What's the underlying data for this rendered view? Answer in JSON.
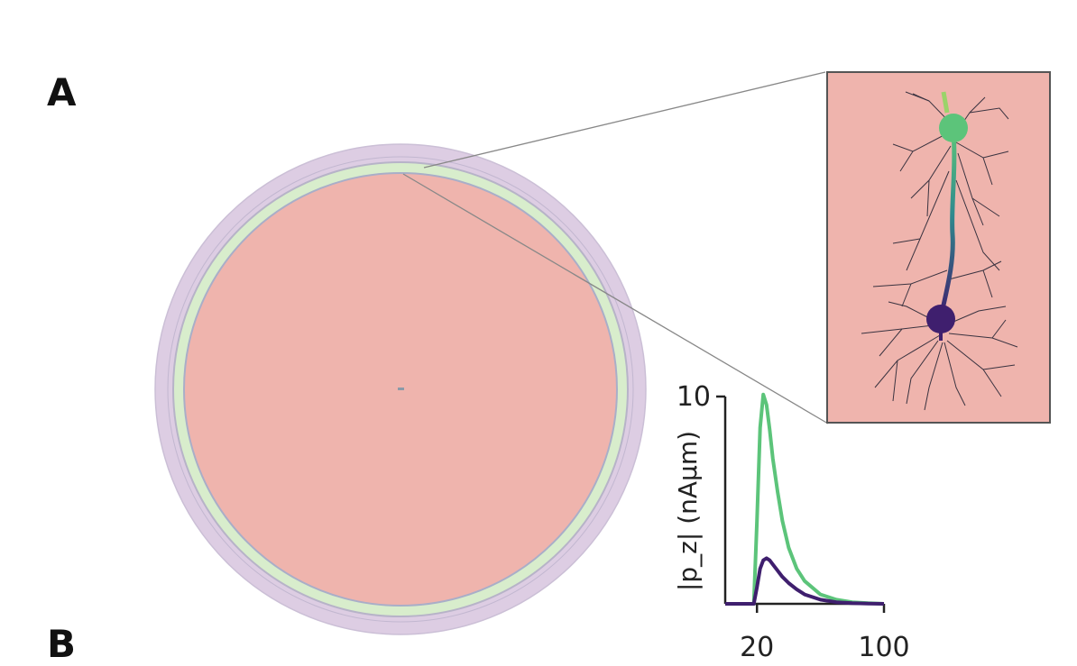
{
  "panels": {
    "a": "A",
    "b": "B"
  },
  "colors": {
    "brain": "#efb4ad",
    "csf": "#d8edcc",
    "skull": "#ddcde3",
    "scalp": "#ddcde3",
    "outline": "#b7b3c8",
    "apical": "#5cc47a",
    "basal": "#3f1f6e",
    "dendrite": "#3a3340"
  },
  "neuron_inset": {
    "description_items": [
      "apical-dipole-marker",
      "basal-dipole-marker"
    ]
  },
  "chart_data": {
    "type": "line",
    "ylabel": "|p_z| (nAµm)",
    "xlabel": "",
    "xlim": [
      0,
      100
    ],
    "ylim": [
      0,
      10
    ],
    "y_ticks": [
      {
        "value": 10,
        "label": "10"
      }
    ],
    "x_ticks": [
      {
        "value": 20,
        "label": "20"
      },
      {
        "value": 100,
        "label": "100"
      }
    ],
    "series": [
      {
        "color": "#5cc47a",
        "x": [
          0,
          18,
          20,
          22,
          24,
          26,
          28,
          30,
          33,
          36,
          40,
          45,
          50,
          60,
          70,
          80,
          90,
          100
        ],
        "y": [
          0,
          0,
          4.0,
          8.5,
          10.1,
          9.6,
          8.4,
          7.0,
          5.4,
          4.0,
          2.7,
          1.7,
          1.1,
          0.45,
          0.2,
          0.08,
          0.03,
          0
        ]
      },
      {
        "color": "#3f1f6e",
        "x": [
          0,
          18,
          20,
          22,
          24,
          26,
          28,
          30,
          33,
          36,
          40,
          45,
          50,
          60,
          70,
          80,
          90,
          100
        ],
        "y": [
          0,
          0,
          0.8,
          1.7,
          2.1,
          2.2,
          2.1,
          1.9,
          1.6,
          1.3,
          1.0,
          0.7,
          0.45,
          0.2,
          0.08,
          0.03,
          0.01,
          0
        ]
      }
    ]
  }
}
